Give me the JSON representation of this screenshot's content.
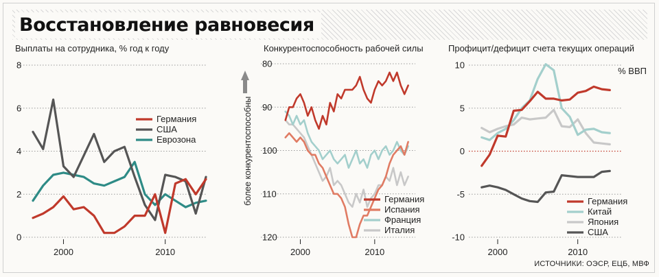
{
  "title": "Восстановление равновесия",
  "source": "ИСТОЧНИКИ: ОЭСР, ЕЦБ, МВФ",
  "colors": {
    "red": "#c0392b",
    "dark": "#555555",
    "teal": "#2e8b86",
    "salmon": "#e07b63",
    "lightteal": "#a3cfcc",
    "lightgray": "#c8c8c8",
    "grid": "#9a9a9a"
  },
  "chart_data": [
    {
      "type": "line",
      "title": "Выплаты на сотрудника, % год к году",
      "xlabel": "",
      "ylabel": "",
      "xlim": [
        1997,
        2014
      ],
      "ylim": [
        0,
        8
      ],
      "yticks": [
        "0",
        "2",
        "4",
        "6",
        "8"
      ],
      "xticks": [
        {
          "x": 2000,
          "label": "2000"
        },
        {
          "x": 2010,
          "label": "2010"
        }
      ],
      "grid": true,
      "legend": "center-right",
      "series": [
        {
          "name": "Германия",
          "color": "#c0392b",
          "x": [
            1997,
            1998,
            1999,
            2000,
            2001,
            2002,
            2003,
            2004,
            2005,
            2006,
            2007,
            2008,
            2009,
            2010,
            2011,
            2012,
            2013,
            2014
          ],
          "y": [
            0.9,
            1.1,
            1.4,
            1.9,
            1.3,
            1.4,
            1.0,
            0.2,
            0.2,
            0.5,
            1.0,
            1.0,
            2.0,
            0.2,
            2.5,
            2.7,
            2.0,
            2.7
          ]
        },
        {
          "name": "США",
          "color": "#555555",
          "x": [
            1997,
            1998,
            1999,
            2000,
            2001,
            2002,
            2003,
            2004,
            2005,
            2006,
            2007,
            2008,
            2009,
            2010,
            2011,
            2012,
            2013,
            2014
          ],
          "y": [
            4.9,
            4.1,
            6.4,
            3.3,
            2.8,
            3.8,
            4.8,
            3.5,
            4.0,
            4.2,
            2.8,
            1.5,
            0.8,
            2.9,
            2.8,
            2.6,
            1.1,
            2.8
          ]
        },
        {
          "name": "Еврозона",
          "color": "#2e8b86",
          "x": [
            1997,
            1998,
            1999,
            2000,
            2001,
            2002,
            2003,
            2004,
            2005,
            2006,
            2007,
            2008,
            2009,
            2010,
            2011,
            2012,
            2013,
            2014
          ],
          "y": [
            1.7,
            2.4,
            2.9,
            3.0,
            2.9,
            2.8,
            2.5,
            2.4,
            2.6,
            2.8,
            3.5,
            2.0,
            1.5,
            2.0,
            1.7,
            1.4,
            1.6,
            1.7
          ]
        }
      ]
    },
    {
      "type": "line",
      "title": "Конкурентоспособность рабочей силы",
      "xlabel": "",
      "ylabel": "более конкурентоспособны",
      "xlim": [
        1997,
        2015
      ],
      "ylim": [
        80,
        120
      ],
      "y_inverted": true,
      "yticks": [
        "80",
        "90",
        "100",
        "110",
        "120"
      ],
      "xticks": [
        {
          "x": 2000,
          "label": "2000"
        },
        {
          "x": 2010,
          "label": "2010"
        }
      ],
      "grid": true,
      "legend": "bottom-right",
      "series": [
        {
          "name": "Германия",
          "color": "#c0392b",
          "x": [
            1998,
            1998.5,
            1999,
            1999.5,
            2000,
            2000.5,
            2001,
            2001.5,
            2002,
            2002.5,
            2003,
            2003.5,
            2004,
            2004.5,
            2005,
            2005.5,
            2006,
            2006.5,
            2007,
            2007.5,
            2008,
            2008.5,
            2009,
            2009.5,
            2010,
            2010.5,
            2011,
            2011.5,
            2012,
            2012.5,
            2013,
            2013.5,
            2014,
            2014.5
          ],
          "y": [
            93,
            90,
            90,
            88,
            87,
            89,
            92,
            90,
            93,
            95,
            92,
            94,
            89,
            91,
            87,
            88,
            86,
            86,
            86,
            85,
            83,
            86,
            88,
            89,
            86,
            84,
            85,
            84,
            82,
            84,
            82,
            85,
            87,
            85
          ]
        },
        {
          "name": "Испания",
          "color": "#e07b63",
          "x": [
            1998,
            1998.5,
            1999,
            1999.5,
            2000,
            2000.5,
            2001,
            2001.5,
            2002,
            2002.5,
            2003,
            2003.5,
            2004,
            2004.5,
            2005,
            2005.5,
            2006,
            2006.5,
            2007,
            2007.5,
            2008,
            2008.5,
            2009,
            2009.5,
            2010,
            2010.5,
            2011,
            2011.5,
            2012,
            2012.5,
            2013,
            2013.5,
            2014,
            2014.5
          ],
          "y": [
            97,
            96,
            97,
            98,
            97,
            98,
            100,
            101,
            101,
            103,
            104,
            106,
            108,
            110,
            110,
            111,
            113,
            117,
            120,
            120,
            117,
            115,
            115,
            113,
            111,
            109,
            108,
            106,
            103,
            101,
            100,
            99,
            101,
            98
          ]
        },
        {
          "name": "Франция",
          "color": "#a3cfcc",
          "x": [
            1998,
            1998.5,
            1999,
            1999.5,
            2000,
            2000.5,
            2001,
            2001.5,
            2002,
            2002.5,
            2003,
            2003.5,
            2004,
            2004.5,
            2005,
            2005.5,
            2006,
            2006.5,
            2007,
            2007.5,
            2008,
            2008.5,
            2009,
            2009.5,
            2010,
            2010.5,
            2011,
            2011.5,
            2012,
            2012.5,
            2013,
            2013.5,
            2014,
            2014.5
          ],
          "y": [
            91,
            92,
            94,
            92,
            94,
            93,
            96,
            98,
            99,
            100,
            102,
            101,
            100,
            102,
            103,
            102,
            101,
            104,
            102,
            100,
            103,
            102,
            104,
            101,
            100,
            102,
            100,
            99,
            101,
            100,
            98,
            100,
            101,
            99
          ]
        },
        {
          "name": "Италия",
          "color": "#c8c8c8",
          "x": [
            1998,
            1998.5,
            1999,
            1999.5,
            2000,
            2000.5,
            2001,
            2001.5,
            2002,
            2002.5,
            2003,
            2003.5,
            2004,
            2004.5,
            2005,
            2005.5,
            2006,
            2006.5,
            2007,
            2007.5,
            2008,
            2008.5,
            2009,
            2009.5,
            2010,
            2010.5,
            2011,
            2011.5,
            2012,
            2012.5,
            2013,
            2013.5,
            2014,
            2014.5
          ],
          "y": [
            93,
            94,
            94,
            95,
            96,
            97,
            99,
            101,
            103,
            105,
            107,
            106,
            104,
            108,
            107,
            108,
            110,
            112,
            113,
            110,
            112,
            109,
            113,
            111,
            110,
            108,
            108,
            106,
            107,
            104,
            108,
            105,
            108,
            106
          ]
        }
      ]
    },
    {
      "type": "line",
      "title": "Профицит/дефицит счета текущих операций",
      "unit_label": "% ВВП",
      "xlabel": "",
      "ylabel": "",
      "xlim": [
        1997,
        2015
      ],
      "ylim": [
        -10,
        10
      ],
      "yticks": [
        "-10",
        "-5",
        "0",
        "5",
        "10"
      ],
      "xticks": [
        {
          "x": 2000,
          "label": "2000"
        },
        {
          "x": 2010,
          "label": "2010"
        }
      ],
      "grid": true,
      "zero_line_color": "#c0392b",
      "legend": "bottom-right",
      "series": [
        {
          "name": "Германия",
          "color": "#c0392b",
          "x": [
            1998,
            1999,
            2000,
            2001,
            2002,
            2003,
            2004,
            2005,
            2006,
            2007,
            2008,
            2009,
            2010,
            2011,
            2012,
            2013,
            2014
          ],
          "y": [
            -1.7,
            -0.4,
            1.8,
            1.7,
            4.7,
            4.8,
            5.8,
            6.9,
            6.1,
            6.1,
            5.9,
            6.0,
            6.8,
            7.0,
            7.5,
            7.2,
            7.1
          ]
        },
        {
          "name": "Китай",
          "color": "#a3cfcc",
          "x": [
            1998,
            1999,
            2000,
            2001,
            2002,
            2003,
            2004,
            2005,
            2006,
            2007,
            2008,
            2009,
            2010,
            2011,
            2012,
            2013,
            2014
          ],
          "y": [
            1.6,
            1.3,
            2.1,
            2.6,
            3.6,
            5.0,
            5.9,
            8.4,
            10.1,
            9.4,
            5.0,
            4.0,
            1.9,
            2.5,
            2.6,
            2.2,
            2.1
          ]
        },
        {
          "name": "Япония",
          "color": "#c8c8c8",
          "x": [
            1998,
            1999,
            2000,
            2001,
            2002,
            2003,
            2004,
            2005,
            2006,
            2007,
            2008,
            2009,
            2010,
            2011,
            2012,
            2013,
            2014
          ],
          "y": [
            2.7,
            2.2,
            2.6,
            2.9,
            3.1,
            3.9,
            3.7,
            3.8,
            3.9,
            4.8,
            2.9,
            2.8,
            3.7,
            2.1,
            1.0,
            0.9,
            0.8
          ]
        },
        {
          "name": "США",
          "color": "#555555",
          "x": [
            1998,
            1999,
            2000,
            2001,
            2002,
            2003,
            2004,
            2005,
            2006,
            2007,
            2008,
            2009,
            2010,
            2011,
            2012,
            2013,
            2014
          ],
          "y": [
            -4.2,
            -4.0,
            -4.2,
            -4.5,
            -5.0,
            -5.5,
            -5.8,
            -5.9,
            -4.8,
            -4.7,
            -2.8,
            -2.9,
            -3.0,
            -3.0,
            -3.0,
            -2.4,
            -2.3
          ]
        }
      ]
    }
  ]
}
